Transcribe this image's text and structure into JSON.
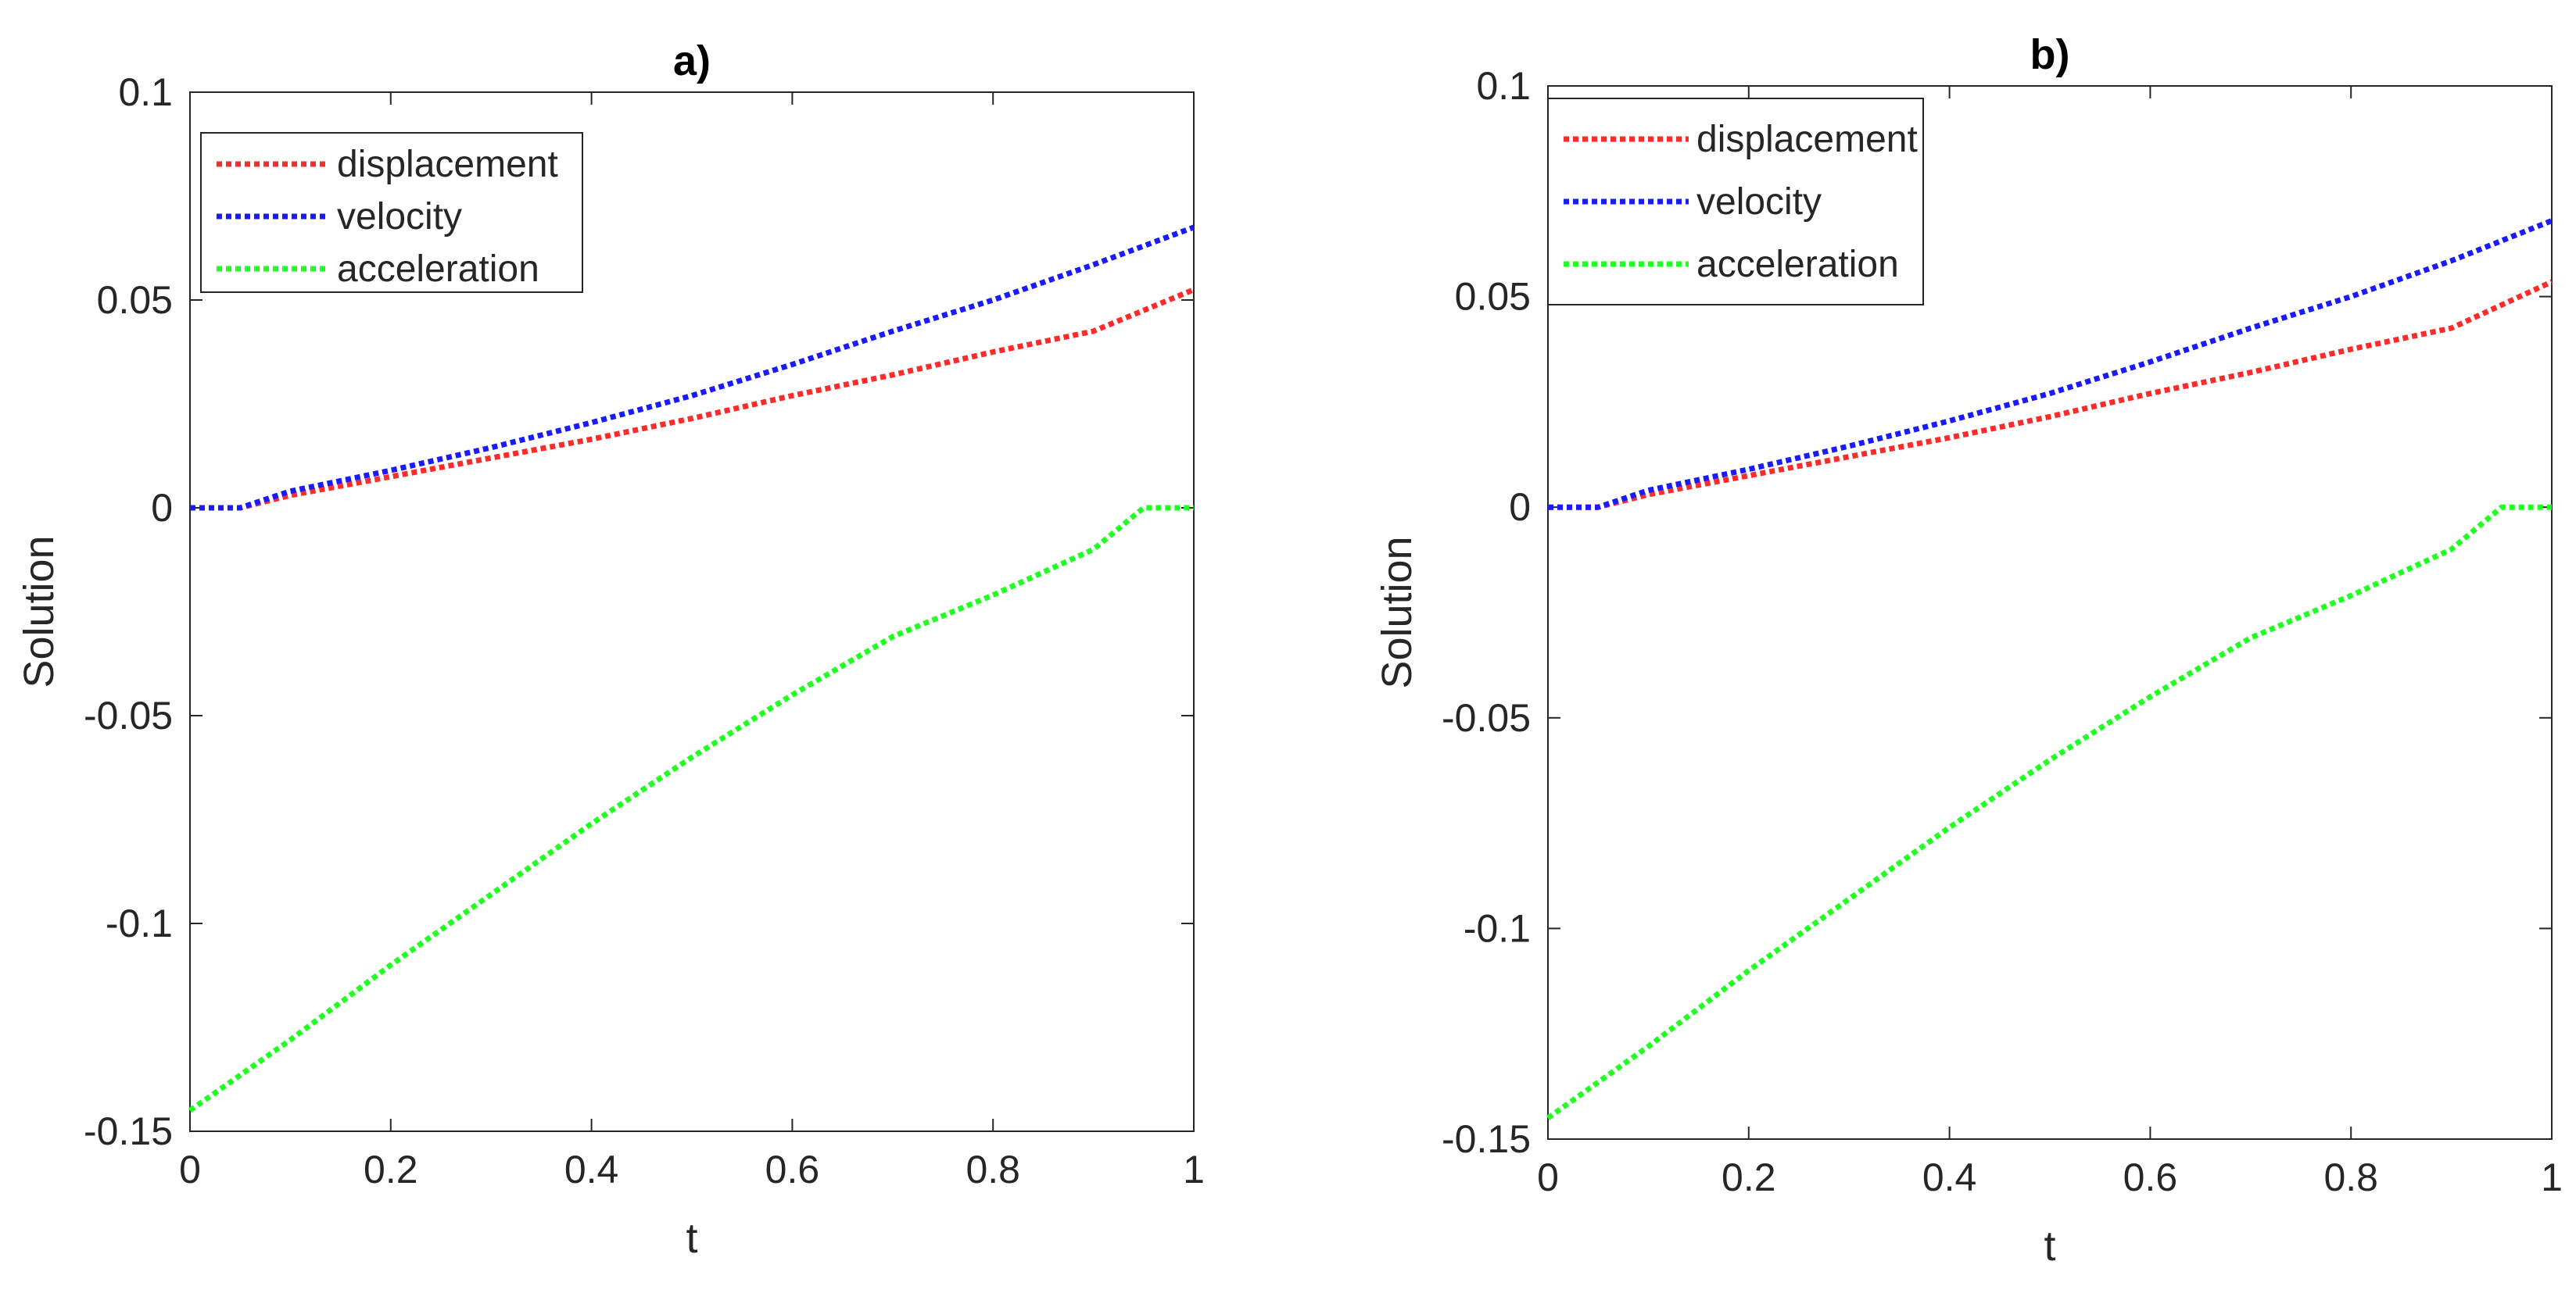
{
  "colors": {
    "displacement": "#ff2b2b",
    "velocity": "#1a1aff",
    "acceleration": "#22ff22",
    "axis": "#262626",
    "background": "#ffffff"
  },
  "chart_data": [
    {
      "type": "line",
      "title": "a)",
      "xlabel": "t",
      "ylabel": "Solution",
      "xlim": [
        0,
        1
      ],
      "ylim": [
        -0.15,
        0.1
      ],
      "xticks": [
        0,
        0.2,
        0.4,
        0.6,
        0.8,
        1
      ],
      "xtick_labels": [
        "0",
        "0.2",
        "0.4",
        "0.6",
        "0.8",
        "1"
      ],
      "yticks": [
        -0.15,
        -0.1,
        -0.05,
        0,
        0.05,
        0.1
      ],
      "ytick_labels": [
        "-0.15",
        "-0.1",
        "-0.05",
        "0",
        "0.05",
        "0.1"
      ],
      "grid": false,
      "legend_position": "top-left",
      "line_style": "dotted",
      "series": [
        {
          "name": "displacement",
          "color_key": "displacement",
          "x": [
            0,
            0.05,
            0.1,
            0.2,
            0.3,
            0.4,
            0.5,
            0.6,
            0.7,
            0.8,
            0.9,
            1.0
          ],
          "y": [
            0,
            0,
            0.003,
            0.0075,
            0.012,
            0.0165,
            0.0215,
            0.027,
            0.032,
            0.0375,
            0.0425,
            0.0525
          ]
        },
        {
          "name": "velocity",
          "color_key": "velocity",
          "x": [
            0,
            0.05,
            0.1,
            0.2,
            0.3,
            0.4,
            0.5,
            0.6,
            0.7,
            0.8,
            0.9,
            1.0
          ],
          "y": [
            0,
            0,
            0.004,
            0.009,
            0.0145,
            0.0205,
            0.027,
            0.0345,
            0.0425,
            0.05,
            0.0585,
            0.0675
          ]
        },
        {
          "name": "acceleration",
          "color_key": "acceleration",
          "x": [
            0,
            0.1,
            0.2,
            0.3,
            0.4,
            0.5,
            0.6,
            0.65,
            0.7,
            0.8,
            0.9,
            0.95,
            1.0
          ],
          "y": [
            -0.145,
            -0.128,
            -0.11,
            -0.093,
            -0.076,
            -0.06,
            -0.045,
            -0.038,
            -0.031,
            -0.021,
            -0.01,
            0,
            0
          ]
        }
      ]
    },
    {
      "type": "line",
      "title": "b)",
      "xlabel": "t",
      "ylabel": "Solution",
      "xlim": [
        0,
        1
      ],
      "ylim": [
        -0.15,
        0.1
      ],
      "xticks": [
        0,
        0.2,
        0.4,
        0.6,
        0.8,
        1
      ],
      "xtick_labels": [
        "0",
        "0.2",
        "0.4",
        "0.6",
        "0.8",
        "1"
      ],
      "yticks": [
        -0.15,
        -0.1,
        -0.05,
        0,
        0.05,
        0.1
      ],
      "ytick_labels": [
        "-0.15",
        "-0.1",
        "-0.05",
        "0",
        "0.05",
        "0.1"
      ],
      "grid": false,
      "legend_position": "top-left",
      "line_style": "dotted",
      "series": [
        {
          "name": "displacement",
          "color_key": "displacement",
          "x": [
            0,
            0.05,
            0.1,
            0.2,
            0.3,
            0.4,
            0.5,
            0.6,
            0.7,
            0.8,
            0.9,
            1.0
          ],
          "y": [
            0,
            0,
            0.003,
            0.0075,
            0.012,
            0.0165,
            0.0215,
            0.027,
            0.032,
            0.0375,
            0.0425,
            0.0535
          ]
        },
        {
          "name": "velocity",
          "color_key": "velocity",
          "x": [
            0,
            0.05,
            0.1,
            0.2,
            0.3,
            0.4,
            0.5,
            0.6,
            0.7,
            0.8,
            0.9,
            1.0
          ],
          "y": [
            0,
            0,
            0.004,
            0.009,
            0.0145,
            0.0205,
            0.027,
            0.0345,
            0.0425,
            0.05,
            0.0585,
            0.068
          ]
        },
        {
          "name": "acceleration",
          "color_key": "acceleration",
          "x": [
            0,
            0.1,
            0.2,
            0.3,
            0.4,
            0.5,
            0.6,
            0.65,
            0.7,
            0.8,
            0.9,
            0.95,
            1.0
          ],
          "y": [
            -0.145,
            -0.128,
            -0.11,
            -0.093,
            -0.076,
            -0.06,
            -0.045,
            -0.038,
            -0.031,
            -0.021,
            -0.01,
            0,
            0
          ]
        }
      ]
    }
  ]
}
